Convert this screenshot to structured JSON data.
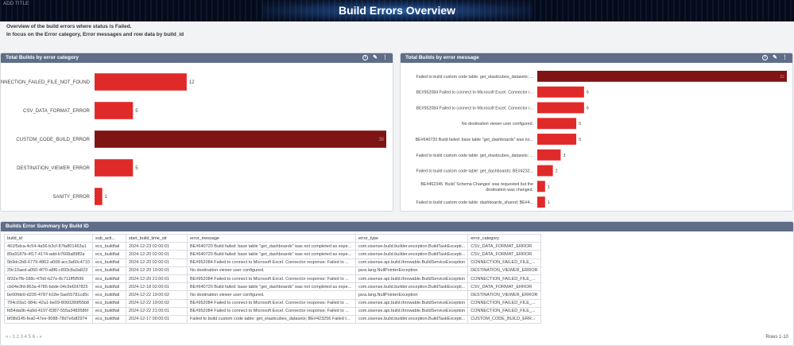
{
  "banner": {
    "add_title": "ADD TITLE",
    "title": "Build Errors Overview"
  },
  "intro": {
    "line1": "Overview of the build errors where status is Failed.",
    "line2": "In focus on the Error category, Error messages and row data by build_id"
  },
  "colors": {
    "header": "#5f6d88",
    "bar": "#e02a2a",
    "bar_highlight": "#7f1414"
  },
  "widget_icons": [
    "info-icon",
    "edit-icon",
    "more-icon"
  ],
  "category_chart": {
    "title": "Total Builds by error category",
    "chart_data": {
      "type": "bar",
      "orientation": "horizontal",
      "categories": [
        "CONNECTION_FAILED_FILE_NOT_FOUND",
        "CSV_DATA_FORMAT_ERROR",
        "CUSTOM_CODE_BUILD_ERROR",
        "DESTINATION_VIEWER_ERROR",
        "SANITY_ERROR"
      ],
      "values": [
        12,
        5,
        38,
        5,
        1
      ],
      "value_labels": [
        "12",
        "5",
        "38",
        "5",
        "1"
      ],
      "highlight_index": 2,
      "xlim": [
        0,
        38
      ]
    }
  },
  "message_chart": {
    "title": "Total Builds by error message",
    "chart_data": {
      "type": "bar",
      "orientation": "horizontal",
      "categories": [
        [
          "Failed to build custom code table: get_elasticubes_datasets; ..."
        ],
        [
          "BE#952084 Failed to connect to Microsoft Excel. Connector r..."
        ],
        [
          "BE#952084 Failed to connect to Microsoft Excel. Connector r..."
        ],
        [
          "No destination viewer user configured."
        ],
        [
          "BE#640720 Build failed: base table \"get_dashboards\" was no..."
        ],
        [
          "Failed to build custom code table: get_elasticubes_datasets; ..."
        ],
        [
          "Failed to build custom code table: get_dashboards; BE#4232..."
        ],
        [
          "BE#462345. Build 'Schema Changes' was requested but the",
          "destination was changed."
        ],
        [
          "Failed to build custom code table: dashboards_shared; BE#4..."
        ]
      ],
      "values": [
        32,
        6,
        6,
        5,
        5,
        3,
        2,
        1,
        1
      ],
      "value_labels": [
        "32",
        "6",
        "6",
        "5",
        "5",
        "3",
        "2",
        "1",
        "1"
      ],
      "highlight_index": 0,
      "xlim": [
        0,
        32
      ]
    }
  },
  "table": {
    "title": "Builds Error Summary by Build ID",
    "columns": [
      "build_id",
      "sub_acti...",
      "start_build_time_str",
      "error_message",
      "error_type",
      "error_category"
    ],
    "rows": [
      [
        "461f5dca-4c54-4a56-b3cf-87fa801463a1",
        "ecs_buildfail",
        "2024-12-23 02:00:01",
        "BE#640720 Build failed: base table \"get_dashboards\" was not completed as expe...",
        "com.sisense.build.builder.exception.BuildTaskExcepti...",
        "CSV_DATA_FORMAT_ERROR"
      ],
      [
        "89a9187b-4f17-4174-add-b7668a89ff2a",
        "ecs_buildfail",
        "2024-12-20 02:00:01",
        "BE#640720 Build failed: base table \"get_dashboards\" was not completed as expe...",
        "com.sisense.build.builder.exception.BuildTaskExcepti...",
        "CSV_DATA_FORMAT_ERROR"
      ],
      [
        "5b9dc2b8-6779-4862-a008-acc3a60c4710",
        "ecs_buildfail",
        "2024-12-20 02:00:01",
        "BE#952084 Failed to connect to Microsoft Excel. Connector response: Failed to ...",
        "com.sisense.api.build.throwable.BuildServiceException",
        "CONNECTION_FAILED_FILE_..."
      ],
      [
        "29c10aed-a050-4f70-a8f6-c893c8a3a823",
        "ecs_buildfail",
        "2024-12-20 19:00:01",
        "No destination viewer user configured.",
        "java.lang.NullPointerException",
        "DESTINATION_VIEWER_ERROR"
      ],
      [
        "6f32e7fb-188c-47b0-b27e-8c711ff5f596",
        "ecs_buildfail",
        "2024-12-20 21:00:01",
        "BE#952084 Failed to connect to Microsoft Excel. Connector response: Failed to ...",
        "com.sisense.api.build.throwable.BuildServiceException",
        "CONNECTION_FAILED_FILE_..."
      ],
      [
        "cb04e3fd-863a-4785-bdde-04c9ef2d7825",
        "ecs_buildfail",
        "2024-12-18 02:00:01",
        "BE#640720 Build failed: base table \"get_dashboards\" was not completed as expe...",
        "com.sisense.build.builder.exception.BuildTaskExcepti...",
        "CSV_DATA_FORMAT_ERROR"
      ],
      [
        "be00fde0-d235-4787-b18e-5ae55781cd5c",
        "ecs_buildfail",
        "2024-12-22 19:00:02",
        "No destination viewer user configured.",
        "java.lang.NullPointerException",
        "DESTINATION_VIEWER_ERROR"
      ],
      [
        "794c03a1-984c-42a1-be09-8060289f55b8",
        "ecs_buildfail",
        "2024-12-22 19:00:02",
        "BE#952084 Failed to connect to Microsoft Excel. Connector response: Failed to ...",
        "com.sisense.api.build.throwable.BuildServiceException",
        "CONNECTION_FAILED_FILE_..."
      ],
      [
        "fd54da0b-4a9d-4197-8387-555a3483586f",
        "ecs_buildfail",
        "2024-12-22 21:00:01",
        "BE#952084 Failed to connect to Microsoft Excel. Connector response: Failed to ...",
        "com.sisense.api.build.throwable.BuildServiceException",
        "CONNECTION_FAILED_FILE_..."
      ],
      [
        "bf08d145-fea0-47ee-9088-78d7e6df2974",
        "ecs_buildfail",
        "2024-12-17 00:00:01",
        "Failed to build custom code table: get_elasticubes_datasets; BE#423256 Failed t...",
        "com.sisense.build.builder.exception.BuildTaskExcepti...",
        "CUSTOM_CODE_BUILD_ERR..."
      ]
    ],
    "pager": "« ‹ 1 2 3 4 5 6 › »",
    "rows_count": "Rows 1-10"
  }
}
